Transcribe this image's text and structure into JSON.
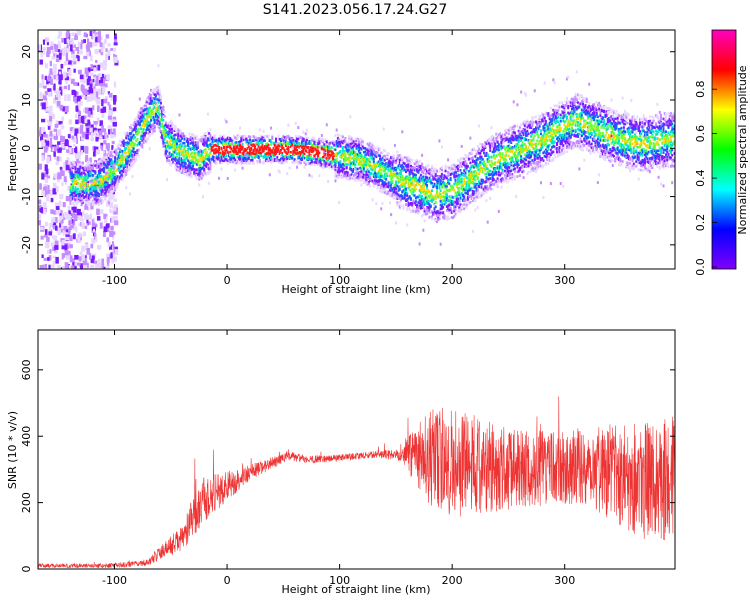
{
  "title": "S141.2023.056.17.24.G27",
  "chart_data": [
    {
      "type": "heatmap",
      "xlabel": "Height of straight line (km)",
      "ylabel": "Frequency (Hz)",
      "xlim": [
        -168,
        398
      ],
      "ylim": [
        -25,
        24.5
      ],
      "x_ticks": [
        -100,
        0,
        100,
        200,
        300
      ],
      "y_ticks": [
        -20,
        -10,
        0,
        10,
        20
      ],
      "colorbar": {
        "label": "Normalized spectral amplitude",
        "range": [
          0,
          1
        ],
        "ticks": [
          "0.0",
          "0.2",
          "0.4",
          "0.6",
          "0.8"
        ],
        "colormap": "gist_rainbow",
        "colors": [
          "#ff00bf",
          "#ff0000",
          "#ffff00",
          "#00ff00",
          "#00ffff",
          "#0000ff",
          "#8000ff"
        ]
      },
      "ridge": {
        "x": [
          -128,
          -115,
          -100,
          -85,
          -70,
          -62,
          -55,
          -45,
          -35,
          -25,
          -15,
          0,
          20,
          40,
          60,
          80,
          100,
          115,
          130,
          150,
          170,
          185,
          200,
          220,
          240,
          260,
          280,
          300,
          310,
          330,
          350,
          370,
          390
        ],
        "y": [
          -7,
          -7,
          -4,
          1,
          7,
          9,
          2,
          0,
          -1,
          -2,
          0,
          0,
          0,
          0,
          0,
          -0.5,
          -1.5,
          -2,
          -3.5,
          -6,
          -8,
          -9.5,
          -8.5,
          -5,
          -2,
          0,
          2,
          5,
          6,
          4,
          2,
          1,
          2
        ]
      }
    },
    {
      "type": "line",
      "xlabel": "Height of straight line (km)",
      "ylabel": "SNR (10 * v/v)",
      "xlim": [
        -168,
        398
      ],
      "ylim": [
        0,
        720
      ],
      "x_ticks": [
        -100,
        0,
        100,
        200,
        300
      ],
      "y_ticks": [
        0,
        200,
        400,
        600
      ],
      "color": "#ee3333",
      "envelope": {
        "x": [
          -168,
          -100,
          -70,
          -55,
          -50,
          -40,
          -30,
          -20,
          0,
          20,
          40,
          55,
          70,
          100,
          130,
          155,
          165,
          180,
          200,
          230,
          260,
          300,
          320,
          340,
          360,
          380,
          398
        ],
        "mean": [
          10,
          10,
          20,
          60,
          70,
          90,
          160,
          210,
          250,
          290,
          320,
          340,
          330,
          335,
          345,
          345,
          355,
          330,
          320,
          310,
          300,
          305,
          310,
          300,
          280,
          260,
          280
        ],
        "amplitude": [
          6,
          7,
          10,
          25,
          30,
          40,
          60,
          70,
          45,
          25,
          18,
          15,
          12,
          10,
          10,
          20,
          90,
          150,
          170,
          140,
          120,
          110,
          120,
          150,
          170,
          190,
          180
        ]
      }
    }
  ]
}
